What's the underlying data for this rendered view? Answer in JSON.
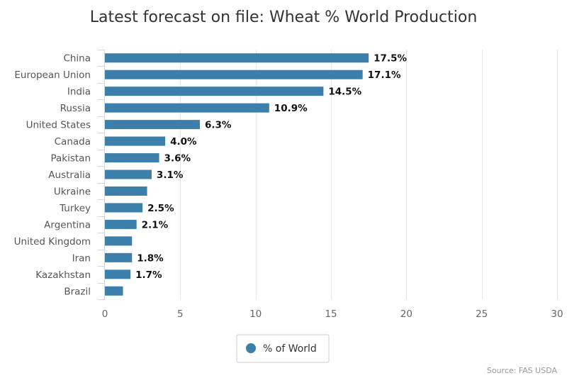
{
  "chart_data": {
    "type": "bar",
    "orientation": "horizontal",
    "title": "Latest forecast on file: Wheat % World Production",
    "categories": [
      "China",
      "European Union",
      "India",
      "Russia",
      "United States",
      "Canada",
      "Pakistan",
      "Australia",
      "Ukraine",
      "Turkey",
      "Argentina",
      "United Kingdom",
      "Iran",
      "Kazakhstan",
      "Brazil"
    ],
    "series": [
      {
        "name": "% of World",
        "color": "#3b7faa",
        "values": [
          17.5,
          17.1,
          14.5,
          10.9,
          6.3,
          4.0,
          3.6,
          3.1,
          2.8,
          2.5,
          2.1,
          1.8,
          1.8,
          1.7,
          1.2
        ],
        "labels": [
          "17.5%",
          "17.1%",
          "14.5%",
          "10.9%",
          "6.3%",
          "4.0%",
          "3.6%",
          "3.1%",
          "",
          "2.5%",
          "2.1%",
          "",
          "1.8%",
          "1.7%",
          ""
        ]
      }
    ],
    "xlim": [
      0,
      30
    ],
    "xticks": [
      0,
      5,
      10,
      15,
      20,
      25,
      30
    ],
    "grid": true,
    "legend": "bottom-center",
    "source": "Source: FAS USDA"
  }
}
